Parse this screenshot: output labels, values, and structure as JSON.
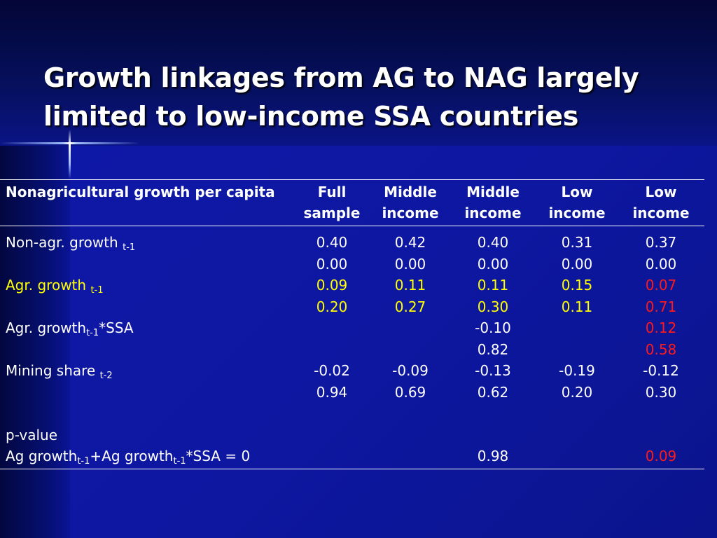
{
  "slide": {
    "title_line1": "Growth linkages from AG to NAG largely",
    "title_line2": "limited to low-income SSA countries"
  },
  "colors": {
    "background": "#0c1280",
    "text": "#ffffff",
    "highlight_yellow": "#ffff00",
    "highlight_red": "#ff1a1a"
  },
  "table": {
    "header": {
      "label": "Nonagricultural growth per capita",
      "columns": [
        "Full sample",
        "Middle income",
        "Middle income",
        "Low income",
        "Low income"
      ]
    },
    "rows": {
      "nonag_coef": {
        "label": "Non-agr. growth",
        "sub": "t-1",
        "values": [
          "0.40",
          "0.42",
          "0.40",
          "0.31",
          "0.37"
        ]
      },
      "nonag_p": {
        "values": [
          "0.00",
          "0.00",
          "0.00",
          "0.00",
          "0.00"
        ]
      },
      "agr_coef": {
        "label": "Agr. growth",
        "sub": "t-1",
        "values": [
          "0.09",
          "0.11",
          "0.11",
          "0.15",
          "0.07"
        ]
      },
      "agr_p": {
        "values": [
          "0.20",
          "0.27",
          "0.30",
          "0.11",
          "0.71"
        ]
      },
      "ssa_coef": {
        "label_a": "Agr. growth",
        "sub": "t-1",
        "label_b": "*SSA",
        "values": [
          "",
          "",
          "-0.10",
          "",
          "0.12"
        ]
      },
      "ssa_p": {
        "values": [
          "",
          "",
          "0.82",
          "",
          "0.58"
        ]
      },
      "mining_coef": {
        "label": "Mining share",
        "sub": "t-2",
        "values": [
          "-0.02",
          "-0.09",
          "-0.13",
          "-0.19",
          "-0.12"
        ]
      },
      "mining_p": {
        "values": [
          "0.94",
          "0.69",
          "0.62",
          "0.20",
          "0.30"
        ]
      },
      "pvalue_title": {
        "label": "p-value"
      },
      "pvalue_test": {
        "label_a": "Ag growth",
        "sub1": "t-1",
        "label_b": "+Ag growth",
        "sub2": "t-1",
        "label_c": "*SSA = 0",
        "values": [
          "",
          "",
          "0.98",
          "",
          "0.09"
        ]
      }
    }
  }
}
